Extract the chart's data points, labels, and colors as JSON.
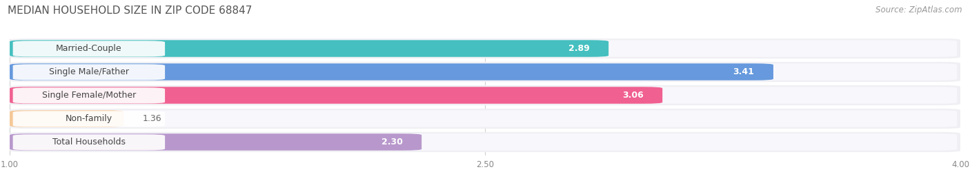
{
  "title": "MEDIAN HOUSEHOLD SIZE IN ZIP CODE 68847",
  "source": "Source: ZipAtlas.com",
  "categories": [
    "Married-Couple",
    "Single Male/Father",
    "Single Female/Mother",
    "Non-family",
    "Total Households"
  ],
  "values": [
    2.89,
    3.41,
    3.06,
    1.36,
    2.3
  ],
  "bar_colors": [
    "#45bfbf",
    "#6699dd",
    "#f06090",
    "#f5c896",
    "#b898cc"
  ],
  "xlim": [
    1.0,
    4.0
  ],
  "xticks": [
    1.0,
    2.5,
    4.0
  ],
  "xtick_labels": [
    "1.00",
    "2.50",
    "4.00"
  ],
  "background_color": "#f5f5f5",
  "bar_bg_color": "#e8e8ec",
  "title_fontsize": 11,
  "label_fontsize": 9,
  "value_fontsize": 9,
  "source_fontsize": 8.5,
  "bar_height": 0.78,
  "value_outside_threshold": 1.8
}
